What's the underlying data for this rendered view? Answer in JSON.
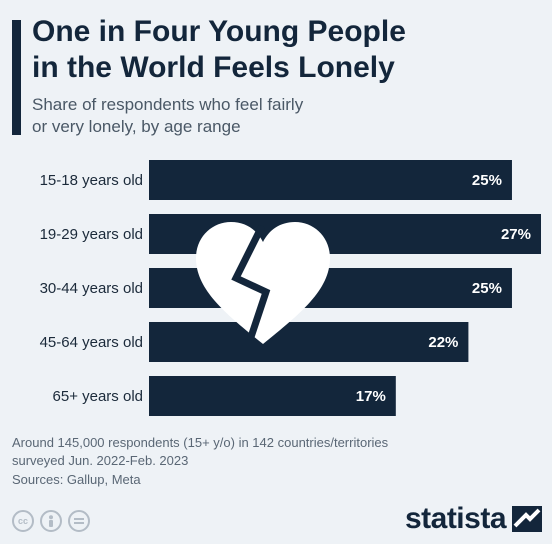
{
  "header": {
    "title_line1": "One in Four Young People",
    "title_line2": "in the World Feels Lonely",
    "subtitle_line1": "Share of respondents who feel fairly",
    "subtitle_line2": "or very lonely, by age range"
  },
  "chart_data": {
    "type": "bar",
    "orientation": "horizontal",
    "categories": [
      "15-18 years old",
      "19-29 years old",
      "30-44 years old",
      "45-64 years old",
      "65+ years old"
    ],
    "values": [
      25,
      27,
      25,
      22,
      17
    ],
    "value_suffix": "%",
    "xlim": [
      0,
      27
    ],
    "bar_color": "#13263b",
    "label_color": "#ffffff",
    "grid": false
  },
  "footer": {
    "note_line1": "Around 145,000 respondents (15+ y/o) in 142 countries/territories",
    "note_line2": "surveyed Jun. 2022-Feb. 2023",
    "sources": "Sources: Gallup, Meta",
    "brand": "statista",
    "license_icons": [
      "cc-icon",
      "person-icon",
      "equals-icon"
    ]
  },
  "decoration": {
    "icon": "broken-heart-icon",
    "color": "#ffffff"
  }
}
